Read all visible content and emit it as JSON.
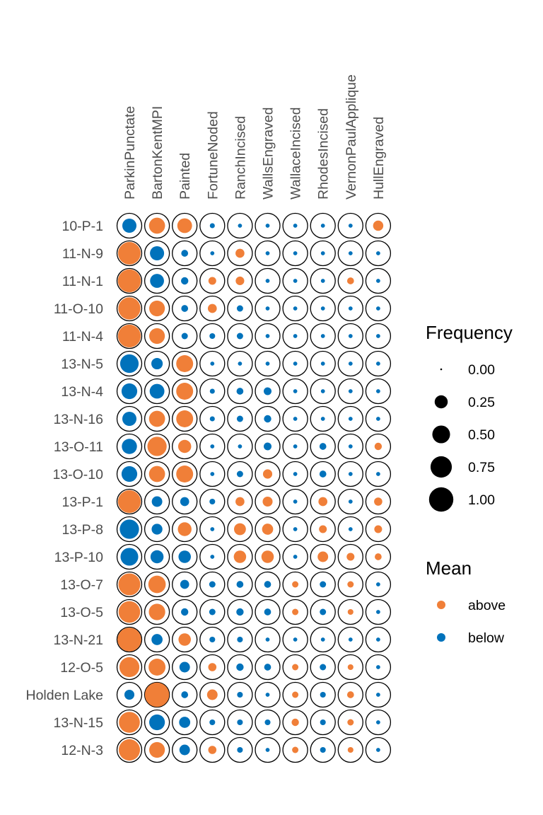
{
  "chart_data": {
    "type": "scatter",
    "title": "",
    "columns": [
      "ParkinPunctate",
      "BartonKentMPI",
      "Painted",
      "FortuneNoded",
      "RanchIncised",
      "WallsEngraved",
      "WallaceIncised",
      "RhodesIncised",
      "VernonPaulApplique",
      "HullEngraved"
    ],
    "rows": [
      "10-P-1",
      "11-N-9",
      "11-N-1",
      "11-O-10",
      "11-N-4",
      "13-N-5",
      "13-N-4",
      "13-N-16",
      "13-O-11",
      "13-O-10",
      "13-P-1",
      "13-P-8",
      "13-P-10",
      "13-O-7",
      "13-O-5",
      "13-N-21",
      "12-O-5",
      "Holden Lake",
      "13-N-15",
      "12-N-3"
    ],
    "frequency": [
      [
        0.3,
        0.4,
        0.33,
        0.02,
        0.01,
        0.01,
        0.01,
        0.01,
        0.01,
        0.14
      ],
      [
        0.85,
        0.3,
        0.05,
        0.01,
        0.1,
        0.01,
        0.01,
        0.01,
        0.01,
        0.01
      ],
      [
        0.88,
        0.29,
        0.06,
        0.07,
        0.09,
        0.01,
        0.01,
        0.01,
        0.05,
        0.01
      ],
      [
        0.82,
        0.38,
        0.05,
        0.1,
        0.04,
        0.01,
        0.01,
        0.01,
        0.01,
        0.01
      ],
      [
        0.87,
        0.38,
        0.04,
        0.03,
        0.04,
        0.01,
        0.01,
        0.01,
        0.01,
        0.01
      ],
      [
        0.55,
        0.18,
        0.45,
        0.01,
        0.01,
        0.01,
        0.01,
        0.01,
        0.01,
        0.01
      ],
      [
        0.38,
        0.33,
        0.45,
        0.02,
        0.05,
        0.07,
        0.01,
        0.01,
        0.01,
        0.01
      ],
      [
        0.3,
        0.4,
        0.45,
        0.02,
        0.04,
        0.06,
        0.01,
        0.01,
        0.01,
        0.01
      ],
      [
        0.35,
        0.6,
        0.25,
        0.01,
        0.01,
        0.07,
        0.01,
        0.05,
        0.01,
        0.06
      ],
      [
        0.38,
        0.4,
        0.45,
        0.01,
        0.04,
        0.11,
        0.01,
        0.05,
        0.01,
        0.01
      ],
      [
        0.87,
        0.15,
        0.1,
        0.03,
        0.1,
        0.13,
        0.01,
        0.1,
        0.01,
        0.08
      ],
      [
        0.6,
        0.16,
        0.28,
        0.01,
        0.2,
        0.17,
        0.01,
        0.07,
        0.01,
        0.07
      ],
      [
        0.5,
        0.25,
        0.22,
        0.01,
        0.22,
        0.22,
        0.01,
        0.15,
        0.07,
        0.05
      ],
      [
        0.8,
        0.48,
        0.1,
        0.04,
        0.05,
        0.05,
        0.04,
        0.04,
        0.04,
        0.01
      ],
      [
        0.77,
        0.42,
        0.06,
        0.04,
        0.06,
        0.05,
        0.04,
        0.04,
        0.03,
        0.01
      ],
      [
        0.95,
        0.17,
        0.22,
        0.03,
        0.03,
        0.01,
        0.01,
        0.01,
        0.01,
        0.01
      ],
      [
        0.65,
        0.45,
        0.15,
        0.08,
        0.06,
        0.05,
        0.04,
        0.04,
        0.03,
        0.01
      ],
      [
        0.13,
        1.0,
        0.05,
        0.15,
        0.03,
        0.01,
        0.04,
        0.03,
        0.05,
        0.01
      ],
      [
        0.72,
        0.38,
        0.17,
        0.03,
        0.03,
        0.03,
        0.06,
        0.03,
        0.04,
        0.01
      ],
      [
        0.75,
        0.38,
        0.15,
        0.08,
        0.03,
        0.01,
        0.04,
        0.03,
        0.03,
        0.01
      ]
    ],
    "mean": [
      [
        "below",
        "above",
        "above",
        "below",
        "below",
        "below",
        "below",
        "below",
        "below",
        "above"
      ],
      [
        "above",
        "below",
        "below",
        "below",
        "above",
        "below",
        "below",
        "below",
        "below",
        "below"
      ],
      [
        "above",
        "below",
        "below",
        "above",
        "above",
        "below",
        "below",
        "below",
        "above",
        "below"
      ],
      [
        "above",
        "above",
        "below",
        "above",
        "below",
        "below",
        "below",
        "below",
        "below",
        "below"
      ],
      [
        "above",
        "above",
        "below",
        "below",
        "below",
        "below",
        "below",
        "below",
        "below",
        "below"
      ],
      [
        "below",
        "below",
        "above",
        "below",
        "below",
        "below",
        "below",
        "below",
        "below",
        "below"
      ],
      [
        "below",
        "below",
        "above",
        "below",
        "below",
        "below",
        "below",
        "below",
        "below",
        "below"
      ],
      [
        "below",
        "above",
        "above",
        "below",
        "below",
        "below",
        "below",
        "below",
        "below",
        "below"
      ],
      [
        "below",
        "above",
        "above",
        "below",
        "below",
        "below",
        "below",
        "below",
        "below",
        "above"
      ],
      [
        "below",
        "above",
        "above",
        "below",
        "below",
        "above",
        "below",
        "below",
        "below",
        "below"
      ],
      [
        "above",
        "below",
        "below",
        "below",
        "above",
        "above",
        "below",
        "above",
        "below",
        "above"
      ],
      [
        "below",
        "below",
        "above",
        "below",
        "above",
        "above",
        "below",
        "above",
        "below",
        "above"
      ],
      [
        "below",
        "below",
        "below",
        "below",
        "above",
        "above",
        "below",
        "above",
        "above",
        "above"
      ],
      [
        "above",
        "above",
        "below",
        "below",
        "below",
        "below",
        "above",
        "below",
        "above",
        "below"
      ],
      [
        "above",
        "above",
        "below",
        "below",
        "below",
        "below",
        "above",
        "below",
        "above",
        "below"
      ],
      [
        "above",
        "below",
        "above",
        "below",
        "below",
        "below",
        "below",
        "below",
        "below",
        "below"
      ],
      [
        "above",
        "above",
        "below",
        "above",
        "below",
        "below",
        "above",
        "below",
        "above",
        "below"
      ],
      [
        "below",
        "above",
        "below",
        "above",
        "below",
        "below",
        "above",
        "below",
        "above",
        "below"
      ],
      [
        "above",
        "below",
        "below",
        "below",
        "below",
        "below",
        "above",
        "below",
        "above",
        "below"
      ],
      [
        "above",
        "above",
        "below",
        "above",
        "below",
        "below",
        "above",
        "below",
        "above",
        "below"
      ]
    ],
    "colors": {
      "above": "#F07F38",
      "below": "#0072BB",
      "outline": "#000000"
    },
    "legend": {
      "placement": "right",
      "size_title": "Frequency",
      "size_values": [
        0.0,
        0.25,
        0.5,
        0.75,
        1.0
      ],
      "size_labels": [
        "0.00",
        "0.25",
        "0.50",
        "0.75",
        "1.00"
      ],
      "color_title": "Mean",
      "color_labels": [
        "above",
        "below"
      ]
    },
    "grid": false
  }
}
